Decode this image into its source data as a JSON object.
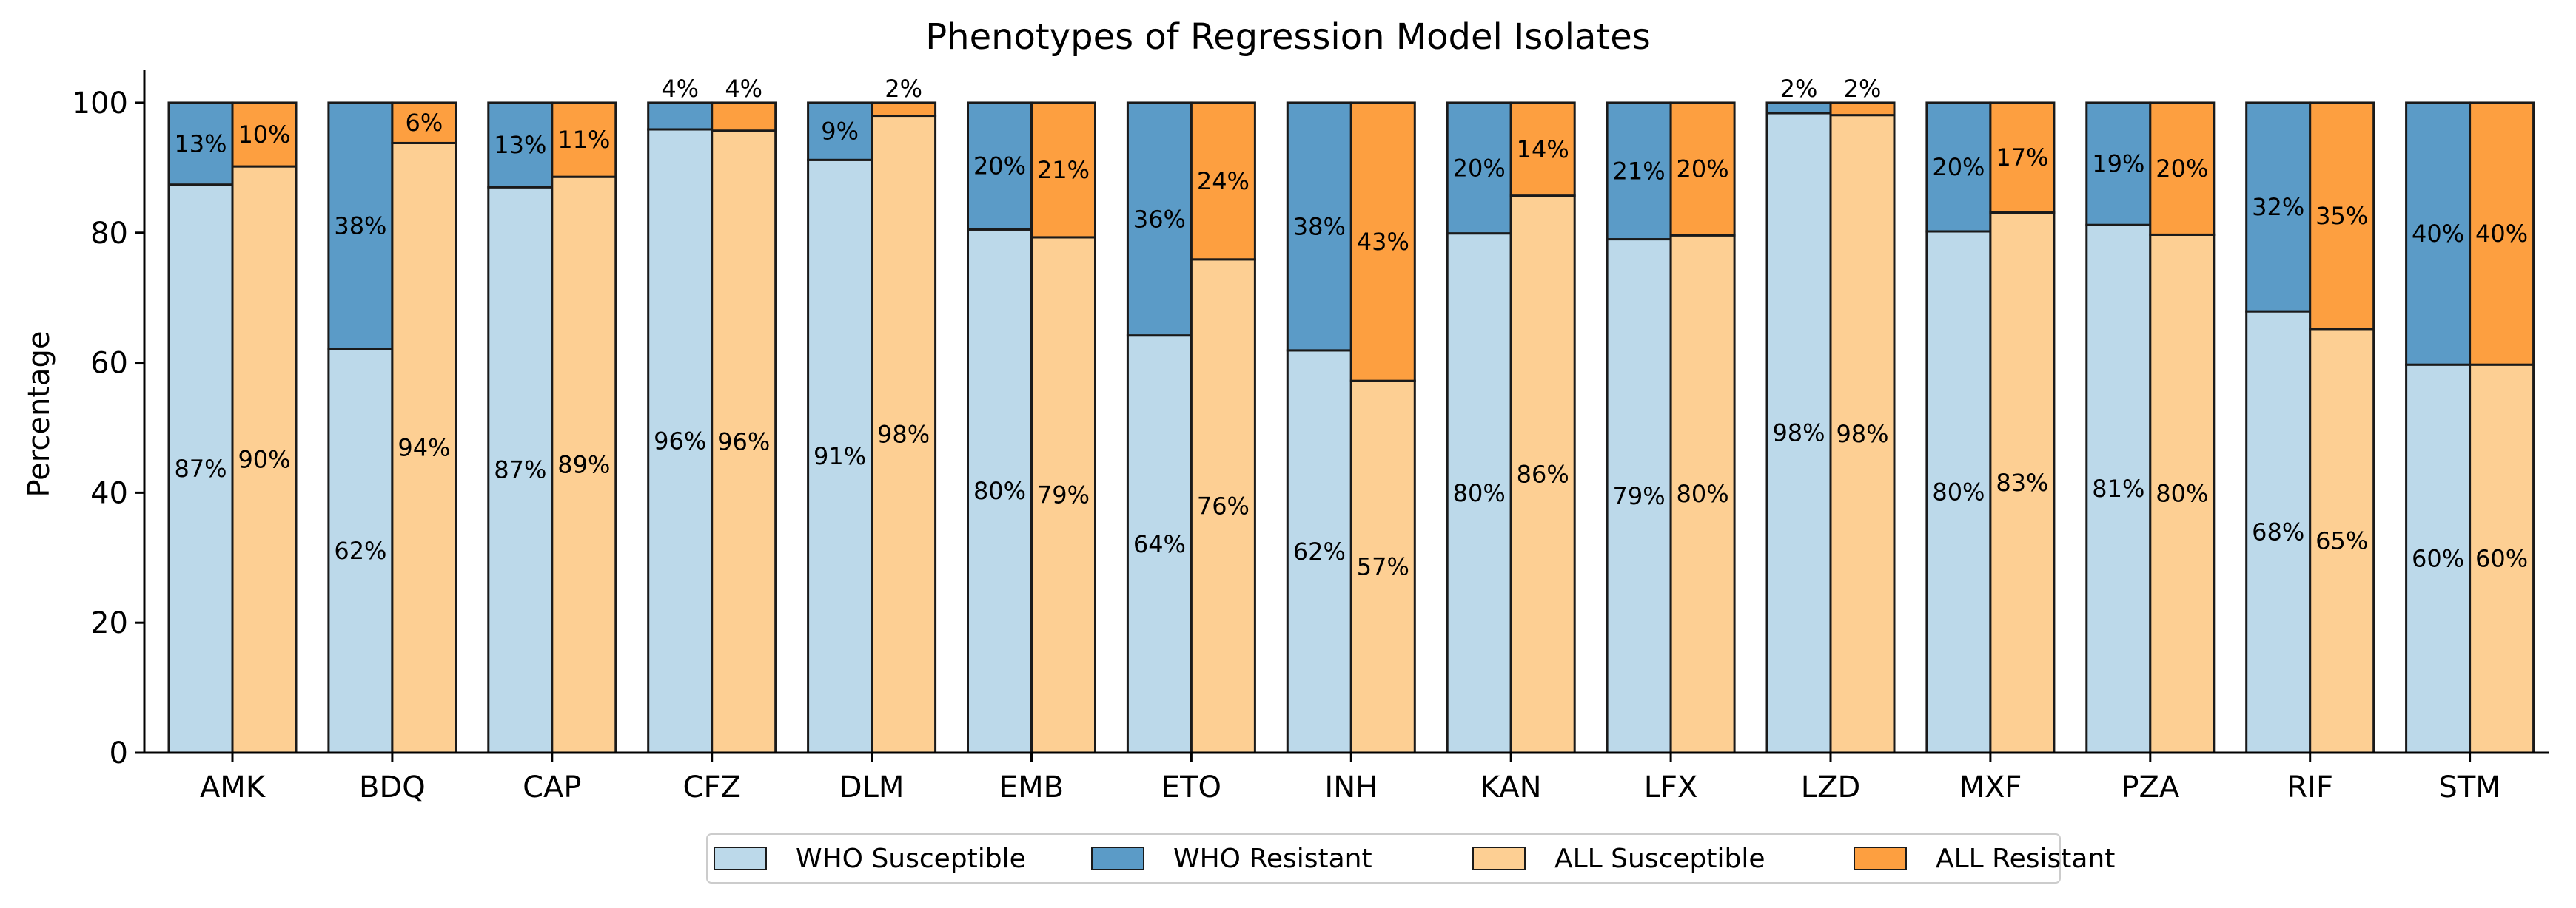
{
  "chart_data": {
    "type": "bar",
    "title": "Phenotypes of Regression Model Isolates",
    "xlabel": "",
    "ylabel": "Percentage",
    "ylim": [
      0,
      105
    ],
    "yticks": [
      0,
      20,
      40,
      60,
      80,
      100
    ],
    "categories": [
      "AMK",
      "BDQ",
      "CAP",
      "CFZ",
      "DLM",
      "EMB",
      "ETO",
      "INH",
      "KAN",
      "LFX",
      "LZD",
      "MXF",
      "PZA",
      "RIF",
      "STM"
    ],
    "groups": [
      {
        "stack": "WHO",
        "susceptible_series": "WHO Susceptible",
        "resistant_series": "WHO Resistant",
        "susceptible_values": [
          87.4,
          62.1,
          87.0,
          95.9,
          91.2,
          80.5,
          64.2,
          61.9,
          79.9,
          79.0,
          98.4,
          80.2,
          81.2,
          67.9,
          59.7
        ],
        "resistant_values": [
          12.6,
          37.9,
          13.0,
          4.1,
          8.8,
          19.5,
          35.8,
          38.1,
          20.1,
          21.0,
          1.6,
          19.8,
          18.8,
          32.1,
          40.3
        ],
        "susceptible_labels": [
          "87%",
          "62%",
          "87%",
          "96%",
          "91%",
          "80%",
          "64%",
          "62%",
          "80%",
          "79%",
          "98%",
          "80%",
          "81%",
          "68%",
          "60%"
        ],
        "resistant_labels": [
          "13%",
          "38%",
          "13%",
          "4%",
          "9%",
          "20%",
          "36%",
          "38%",
          "20%",
          "21%",
          "2%",
          "20%",
          "19%",
          "32%",
          "40%"
        ]
      },
      {
        "stack": "ALL",
        "susceptible_series": "ALL Susceptible",
        "resistant_series": "ALL Resistant",
        "susceptible_values": [
          90.2,
          93.8,
          88.6,
          95.7,
          98.0,
          79.3,
          75.9,
          57.2,
          85.7,
          79.6,
          98.1,
          83.1,
          79.7,
          65.2,
          59.7
        ],
        "resistant_values": [
          9.8,
          6.2,
          11.4,
          4.3,
          2.0,
          20.7,
          24.1,
          42.8,
          14.3,
          20.4,
          1.9,
          16.9,
          20.3,
          34.8,
          40.3
        ],
        "susceptible_labels": [
          "90%",
          "94%",
          "89%",
          "96%",
          "98%",
          "79%",
          "76%",
          "57%",
          "86%",
          "80%",
          "98%",
          "83%",
          "80%",
          "65%",
          "60%"
        ],
        "resistant_labels": [
          "10%",
          "6%",
          "11%",
          "4%",
          "2%",
          "21%",
          "24%",
          "43%",
          "14%",
          "20%",
          "2%",
          "17%",
          "20%",
          "35%",
          "40%"
        ]
      }
    ],
    "series": [
      {
        "name": "WHO Susceptible",
        "color": "#bcd9ea"
      },
      {
        "name": "WHO Resistant",
        "color": "#5b9bc7"
      },
      {
        "name": "ALL Susceptible",
        "color": "#fdcf93"
      },
      {
        "name": "ALL Resistant",
        "color": "#fd9f40"
      }
    ],
    "legend_position": "bottom-center",
    "grid": false
  }
}
